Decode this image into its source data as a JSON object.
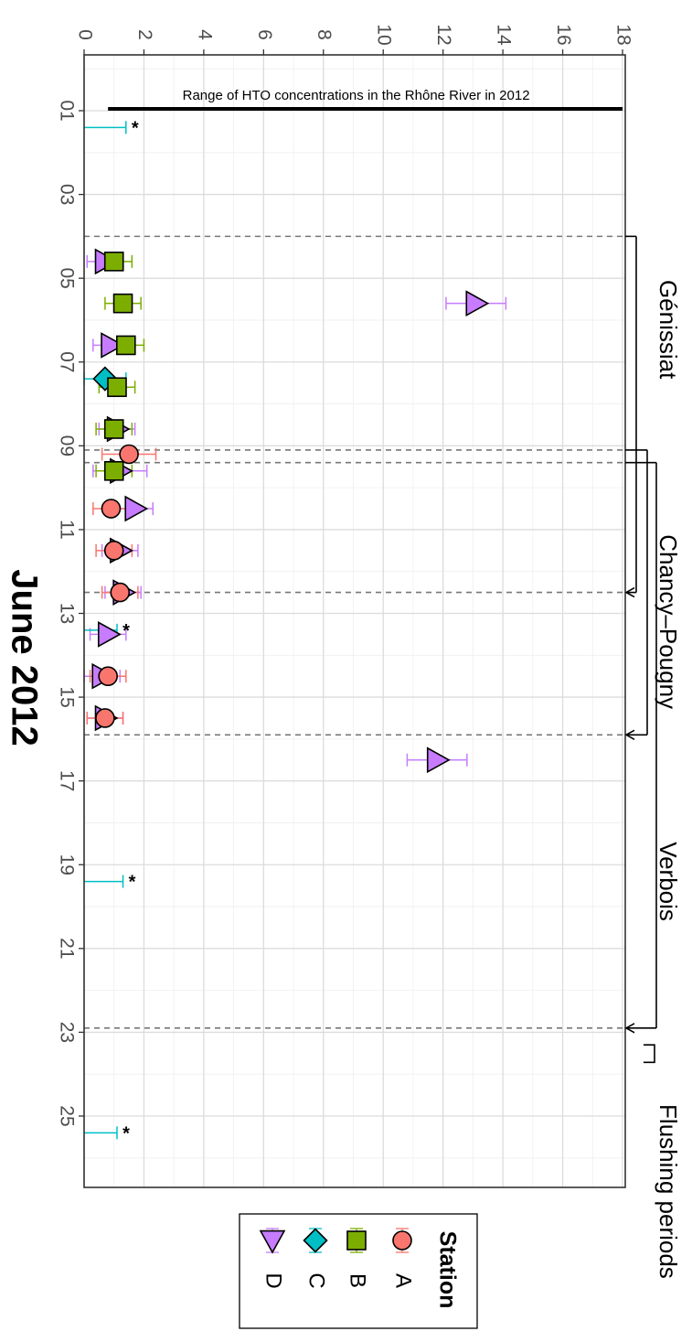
{
  "chart_data": {
    "type": "scatter",
    "orientation": "rotated 90 degrees clockwise (value axis along top, date axis descending the page)",
    "xlabel": "June 2012",
    "ylabel": "",
    "x_ticks": [
      "01",
      "03",
      "05",
      "07",
      "09",
      "11",
      "13",
      "15",
      "17",
      "19",
      "21",
      "23",
      "25"
    ],
    "x_tick_values": [
      1,
      3,
      5,
      7,
      9,
      11,
      13,
      15,
      17,
      19,
      21,
      23,
      25
    ],
    "xlim": [
      0.3,
      26.8
    ],
    "y_ticks": [
      "0",
      "2",
      "4",
      "6",
      "8",
      "10",
      "12",
      "14",
      "16",
      "18"
    ],
    "y_tick_values": [
      0,
      2,
      4,
      6,
      8,
      10,
      12,
      14,
      16,
      18
    ],
    "ylim": [
      0,
      18.8
    ],
    "grid": true,
    "legend": {
      "title": "Station",
      "position": "right",
      "entries": [
        {
          "name": "A",
          "shape": "circle",
          "color": "#F8766D"
        },
        {
          "name": "B",
          "shape": "square",
          "color": "#7CAE00"
        },
        {
          "name": "C",
          "shape": "diamond",
          "color": "#00BFC4"
        },
        {
          "name": "D",
          "shape": "triangle",
          "color": "#C77CFF"
        }
      ]
    },
    "series": [
      {
        "name": "A",
        "shape": "circle",
        "color": "#F8766D",
        "points": [
          {
            "x": 9.2,
            "y": 1.5,
            "err": 0.9
          },
          {
            "x": 10.5,
            "y": 0.9,
            "err": 0.6
          },
          {
            "x": 11.5,
            "y": 1.0,
            "err": 0.6
          },
          {
            "x": 12.5,
            "y": 1.2,
            "err": 0.6
          },
          {
            "x": 14.5,
            "y": 0.8,
            "err": 0.6
          },
          {
            "x": 15.5,
            "y": 0.7,
            "err": 0.6
          }
        ]
      },
      {
        "name": "B",
        "shape": "square",
        "color": "#7CAE00",
        "points": [
          {
            "x": 4.6,
            "y": 1.0,
            "err": 0.6
          },
          {
            "x": 5.6,
            "y": 1.3,
            "err": 0.6
          },
          {
            "x": 6.6,
            "y": 1.4,
            "err": 0.6
          },
          {
            "x": 7.6,
            "y": 1.1,
            "err": 0.6
          },
          {
            "x": 8.6,
            "y": 1.0,
            "err": 0.6
          },
          {
            "x": 9.6,
            "y": 1.0,
            "err": 0.6
          }
        ]
      },
      {
        "name": "C",
        "shape": "diamond",
        "color": "#00BFC4",
        "points": [
          {
            "x": 1.4,
            "y": 0.0,
            "err": 1.4,
            "asterisk": true
          },
          {
            "x": 7.4,
            "y": 0.7,
            "err": 0.7
          },
          {
            "x": 13.4,
            "y": 0.0,
            "err": 1.1,
            "asterisk": true
          },
          {
            "x": 19.4,
            "y": 0.0,
            "err": 1.3,
            "asterisk": true
          },
          {
            "x": 25.4,
            "y": 0.0,
            "err": 1.1,
            "asterisk": true
          }
        ]
      },
      {
        "name": "D",
        "shape": "triangle",
        "color": "#C77CFF",
        "points": [
          {
            "x": 4.6,
            "y": 0.7,
            "err": 0.6
          },
          {
            "x": 5.6,
            "y": 13.1,
            "err": 1.0
          },
          {
            "x": 6.6,
            "y": 0.9,
            "err": 0.6
          },
          {
            "x": 8.6,
            "y": 1.1,
            "err": 0.6
          },
          {
            "x": 9.6,
            "y": 1.2,
            "err": 0.9
          },
          {
            "x": 10.5,
            "y": 1.7,
            "err": 0.6
          },
          {
            "x": 11.5,
            "y": 1.2,
            "err": 0.6
          },
          {
            "x": 12.5,
            "y": 1.3,
            "err": 0.6
          },
          {
            "x": 13.5,
            "y": 0.8,
            "err": 0.6
          },
          {
            "x": 14.5,
            "y": 0.6,
            "err": 0.6
          },
          {
            "x": 15.5,
            "y": 0.7,
            "err": 0.6
          },
          {
            "x": 16.5,
            "y": 11.8,
            "err": 1.0
          }
        ]
      }
    ],
    "reference_range": {
      "label": "Range of HTO concentrations in the Rhône River in 2012",
      "from": 0.8,
      "to": 18.0
    },
    "periods": [
      {
        "name": "Génissiat",
        "start": 4.0,
        "end": 12.5
      },
      {
        "name": "Chancy–Pougny",
        "start": 9.1,
        "end": 15.9
      },
      {
        "name": "Verbois",
        "start": 9.4,
        "end": 22.9
      },
      {
        "name": "Flushing periods",
        "start": 23.3,
        "end": 23.5
      }
    ],
    "dashed_dates": [
      4.0,
      9.1,
      9.4,
      12.5,
      15.9,
      22.9
    ]
  }
}
